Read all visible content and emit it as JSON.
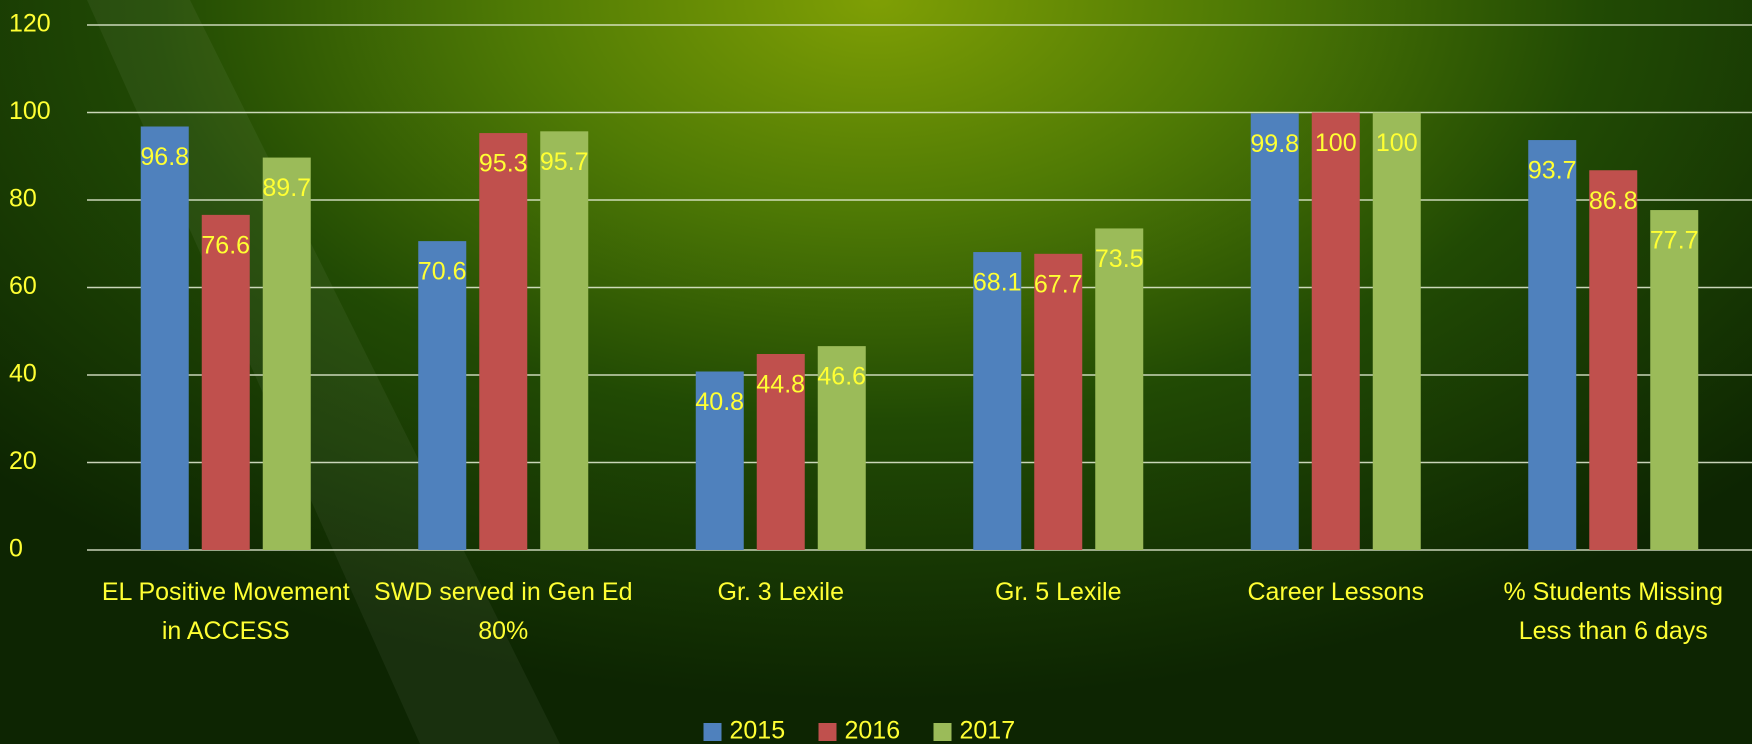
{
  "chart_data": {
    "type": "bar",
    "categories": [
      "EL Positive Movement in ACCESS",
      "SWD served in Gen Ed 80%",
      "Gr. 3 Lexile",
      "Gr. 5 Lexile",
      "Career Lessons",
      "% Students Missing Less than 6 days"
    ],
    "series": [
      {
        "name": "2015",
        "color": "#4f81bd",
        "values": [
          96.8,
          70.6,
          40.8,
          68.1,
          99.8,
          93.7
        ]
      },
      {
        "name": "2016",
        "color": "#c0504d",
        "values": [
          76.6,
          95.3,
          44.8,
          67.7,
          100,
          86.8
        ]
      },
      {
        "name": "2017",
        "color": "#9bbb59",
        "values": [
          89.7,
          95.7,
          46.6,
          73.5,
          100,
          77.7
        ]
      }
    ],
    "ylim": [
      0,
      120
    ],
    "yticks": [
      0,
      20,
      40,
      60,
      80,
      100,
      120
    ],
    "grid": true,
    "legend": "bottom"
  }
}
